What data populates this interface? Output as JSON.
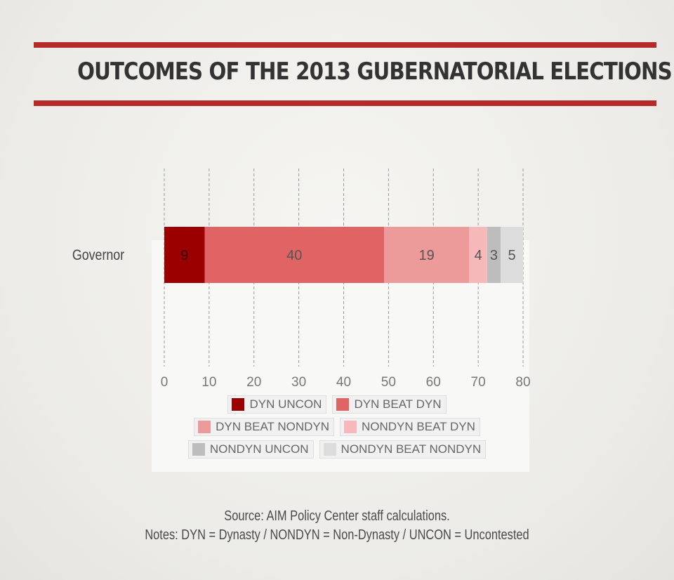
{
  "title": "OUTCOMES OF THE 2013 GUBERNATORIAL ELECTIONS",
  "source": "Source: AIM Policy Center staff calculations.",
  "notes": "Notes: DYN = Dynasty / NONDYN = Non-Dynasty / UNCON = Uncontested",
  "colors": {
    "rule": "#b52a2a",
    "title": "#333333"
  },
  "legend_rows": [
    [
      "DYN UNCON",
      "DYN BEAT DYN"
    ],
    [
      "DYN BEAT NONDYN",
      "NONDYN BEAT DYN"
    ],
    [
      "NONDYN UNCON",
      "NONDYN BEAT NONDYN"
    ]
  ],
  "chart_data": {
    "type": "bar",
    "orientation": "horizontal",
    "stacked": true,
    "title": "OUTCOMES OF THE 2013 GUBERNATORIAL ELECTIONS",
    "categories": [
      "Governor"
    ],
    "series": [
      {
        "name": "DYN UNCON",
        "values": [
          9
        ],
        "color": "#9b0000"
      },
      {
        "name": "DYN BEAT DYN",
        "values": [
          40
        ],
        "color": "#e16464"
      },
      {
        "name": "DYN BEAT NONDYN",
        "values": [
          19
        ],
        "color": "#ec9a9a"
      },
      {
        "name": "NONDYN BEAT DYN",
        "values": [
          4
        ],
        "color": "#f6b8b8"
      },
      {
        "name": "NONDYN UNCON",
        "values": [
          3
        ],
        "color": "#bdbdbd"
      },
      {
        "name": "NONDYN BEAT NONDYN",
        "values": [
          5
        ],
        "color": "#dcdcdc"
      }
    ],
    "xlim": [
      0,
      80
    ],
    "xticks": [
      0,
      10,
      20,
      30,
      40,
      50,
      60,
      70,
      80
    ],
    "grid": true,
    "legend_position": "bottom"
  }
}
